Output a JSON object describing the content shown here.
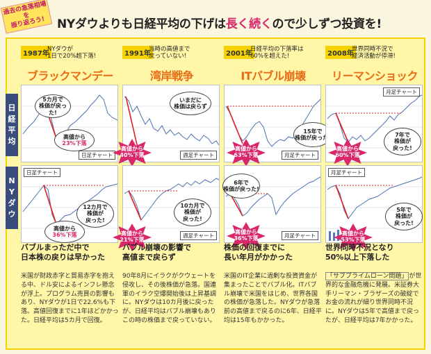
{
  "ribbon": "過去の急落相場を\n振り返ろう!",
  "headline": {
    "part1": "NYダウよりも日経平均の下げは",
    "accent": "長く続く",
    "part2": "ので少しずつ投資を!"
  },
  "row_labels": {
    "nikkei": [
      "日",
      "経",
      "平",
      "均"
    ],
    "nydow": [
      "N",
      "Y",
      "ダ",
      "ウ"
    ]
  },
  "columns": [
    {
      "year": "1987年",
      "note": "NYダウが\n1日で20%超下落!",
      "event": "ブラックマンデー",
      "nikkei": {
        "tag": "日足チャート",
        "recover": "5カ月で\n株価が戻った!",
        "drop_head": "高値から",
        "drop_pct": "23%下落"
      },
      "ny": {
        "tag": "日足チャート",
        "recover": "12カ月で\n株価が\n戻った!",
        "drop_head": "高値から",
        "drop_pct": "36%下落"
      },
      "summary": "バブルまっただ中で\n日本株の戻りは早かった",
      "body": "米国が財政赤字と貿易赤字を抱える中、ドル安によるインフレ懸念が浮上。プログラム売買の影響もあり、NYダウが1日で22.6%も下落。高値回復までに1年ほどかかった。日経平均は5カ月で回復。"
    },
    {
      "year": "1991年",
      "note": "当時の高値まで\n戻っていない!",
      "event": "湾岸戦争",
      "nikkei": {
        "tag": "週足チャート",
        "recover": "いまだに\n株価は戻らず",
        "drop_head": "高値から",
        "drop_pct": "40%下落"
      },
      "ny": {
        "tag": "週足チャート",
        "recover": "10カ月で\n株価が\n戻った!",
        "drop_head": "高値から",
        "drop_pct": "21%下落"
      },
      "summary": "バブル崩壊の影響で\n高値まで戻らず",
      "body": "90年8月にイラクがクウェートを侵攻し、その後株価が急落。国連軍のイラク空爆開始後は上昇基調に。NYダウは10カ月後に戻ったが、日経平均はバブル崩壊もありこの時の株価まで戻っていない。"
    },
    {
      "year": "2001年",
      "note": "日経平均の下落率は\n60%を超えた!",
      "event": "ITバブル崩壊",
      "nikkei": {
        "tag": "月足チャート",
        "recover": "15年で\n株価が戻った!",
        "drop_head": "高値から",
        "drop_pct": "63%下落"
      },
      "ny": {
        "tag": "月足チャート",
        "recover": "6年で\n株価が戻った!",
        "drop_head": "高値から",
        "drop_pct": "36%下落"
      },
      "summary": "株価の回復までに\n長い年月がかかった",
      "body": "米国のIT企業に過剰な投資資金が集まったことでバブル化。ITバブル崩壊で米国をはじめ、世界各国の株価が急落した。NYダウが急落前の高値まで戻るのに6年、日経平均は15年もかかった。"
    },
    {
      "year": "2008年",
      "note": "世界同時不況で\n経済活動が停滞!",
      "event": "リーマンショック",
      "nikkei": {
        "tag": "月足チャート",
        "recover": "7年で\n株価が\n戻った!",
        "drop_head": "高値から",
        "drop_pct": "60%下落"
      },
      "ny": {
        "tag": "月足チャート",
        "recover": "5年で\n株価が\n戻った!",
        "drop_head": "高値から",
        "drop_pct": "53%下落"
      },
      "summary": "世界同時不況となり\n50%以上下落した",
      "body_quote": "「サブプライムローン問題」",
      "body": "が世界的な金融危機に発展。米証券大手リーマン・ブラザーズの破綻でお金の流れが細り世界同時不況に。NYダウは5年で高値まで戻ったが、日経平均は7年かかった。"
    }
  ],
  "colors": {
    "accent": "#d9276a",
    "event": "#ea6b15",
    "frame": "#f5d200",
    "line": "#4a6fb0",
    "drop": "#e02020",
    "label_bg": "#3a4d7a"
  }
}
